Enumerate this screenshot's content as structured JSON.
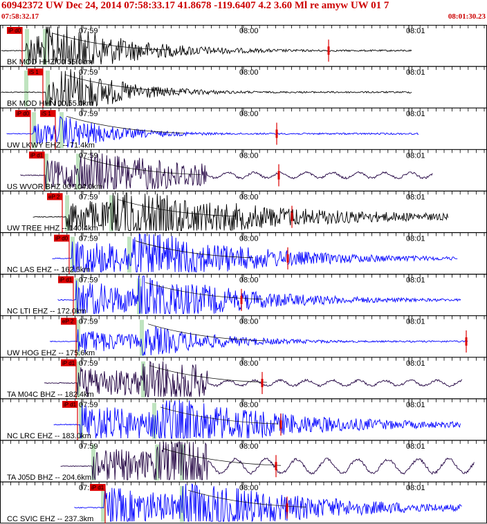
{
  "header": {
    "title": "60942372 UW Dec 24, 2014 07:58:33.17    41.8678 -119.6407  4.2 3.60 Ml re amyw UW 01    7",
    "start_time": "07:58:32.17",
    "end_time": "08:01:30.23"
  },
  "colors": {
    "frame": "#000000",
    "pick_red": "#dd0000",
    "phase_green": "#b8e0b8",
    "trace_blue": "#0000ff",
    "trace_black": "#000000",
    "trace_purple": "#200040"
  },
  "chart_data": {
    "type": "line",
    "time_ticks": [
      "07:59",
      "08:00",
      "08:01"
    ],
    "channels": [
      {
        "label": "BK MOD HHZ 00 55.0km",
        "color": "#000000",
        "picks": [
          "iP d0"
        ]
      },
      {
        "label": "BK MOD HHN 00 55.0km",
        "color": "#000000",
        "picks": [
          "iS 1"
        ]
      },
      {
        "label": "UW LKWY EHZ -- 71.4km",
        "color": "#0000ff",
        "picks": [
          "iP d0",
          "iS 1"
        ]
      },
      {
        "label": "US WVOR BHZ 00 104.0km",
        "color": "#200040",
        "picks": [
          "iP d1"
        ]
      },
      {
        "label": "UW TREE HHZ -- 140.4km",
        "color": "#000000",
        "picks": [
          "eP 2"
        ]
      },
      {
        "label": "NC LAS EHZ -- 162.5km",
        "color": "#0000ff",
        "picks": [
          "iP d0"
        ]
      },
      {
        "label": "NC LTI EHZ -- 172.0km",
        "color": "#0000ff",
        "picks": [
          "iP d1"
        ]
      },
      {
        "label": "UW HOG EHZ -- 175.6km",
        "color": "#0000ff",
        "picks": [
          "eP 2"
        ]
      },
      {
        "label": "TA M04C BHZ -- 182.4km",
        "color": "#200040",
        "picks": [
          "iP d1"
        ]
      },
      {
        "label": "NC LRC EHZ -- 183.0km",
        "color": "#0000ff",
        "picks": [
          "iP d1"
        ]
      },
      {
        "label": "TA J05D BHZ -- 204.6km",
        "color": "#200040",
        "picks": []
      },
      {
        "label": "CC SVIC EHZ -- 237.3km",
        "color": "#0000ff",
        "picks": [
          "iP d1"
        ]
      }
    ]
  }
}
